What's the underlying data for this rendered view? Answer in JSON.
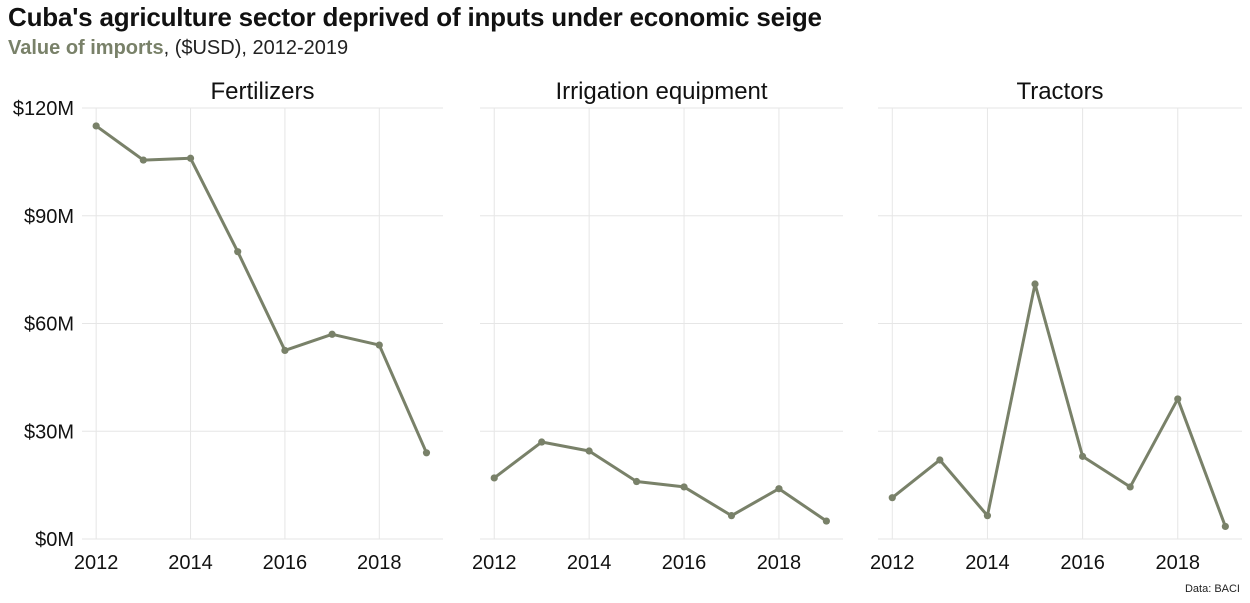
{
  "title": "Cuba's agriculture sector deprived of inputs under economic seige",
  "subtitle": {
    "highlight": "Value of imports",
    "rest": ", ($USD), 2012-2019"
  },
  "source": "Data: BACI",
  "colors": {
    "line": "#798169",
    "grid": "#e6e6e6",
    "text": "#111111"
  },
  "chart_data": [
    {
      "type": "line",
      "title": "Fertilizers",
      "x": [
        2012,
        2013,
        2014,
        2015,
        2016,
        2017,
        2018,
        2019
      ],
      "values": [
        115,
        105.5,
        106,
        80,
        52.5,
        57,
        54,
        24
      ],
      "xlabel": "",
      "ylabel": "",
      "ylim": [
        0,
        120
      ],
      "yticks": [
        0,
        30,
        60,
        90,
        120
      ],
      "ytick_labels": [
        "$0M",
        "$30M",
        "$60M",
        "$90M",
        "$120M"
      ],
      "xticks": [
        2012,
        2014,
        2016,
        2018
      ]
    },
    {
      "type": "line",
      "title": "Irrigation equipment",
      "x": [
        2012,
        2013,
        2014,
        2015,
        2016,
        2017,
        2018,
        2019
      ],
      "values": [
        17,
        27,
        24.5,
        16,
        14.5,
        6.5,
        14,
        5
      ],
      "xlabel": "",
      "ylabel": "",
      "ylim": [
        0,
        120
      ],
      "xticks": [
        2012,
        2014,
        2016,
        2018
      ]
    },
    {
      "type": "line",
      "title": "Tractors",
      "x": [
        2012,
        2013,
        2014,
        2015,
        2016,
        2017,
        2018,
        2019
      ],
      "values": [
        11.5,
        22,
        6.5,
        71,
        23,
        14.5,
        39,
        3.5
      ],
      "xlabel": "",
      "ylabel": "",
      "ylim": [
        0,
        120
      ],
      "xticks": [
        2012,
        2014,
        2016,
        2018
      ]
    }
  ]
}
